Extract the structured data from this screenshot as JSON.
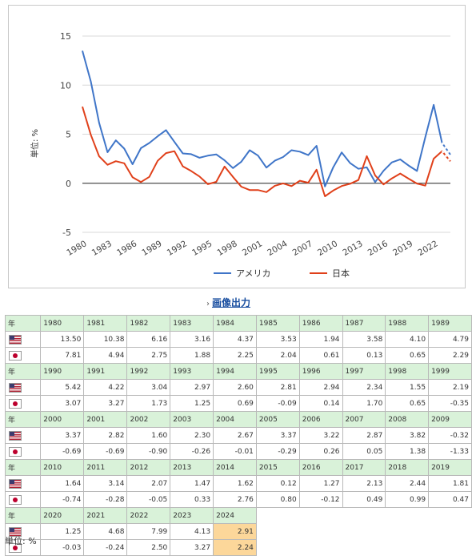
{
  "chart_data": {
    "type": "line",
    "ylabel": "単位: %",
    "ylim": [
      -5,
      15
    ],
    "yticks": [
      15,
      10,
      5,
      0,
      -5
    ],
    "xlim": [
      1980,
      2024
    ],
    "xtick_labels": [
      "1980",
      "1983",
      "1986",
      "1989",
      "1992",
      "1995",
      "1998",
      "2001",
      "2004",
      "2007",
      "2010",
      "2013",
      "2016",
      "2019",
      "2022"
    ],
    "grid": true,
    "legend_position": "bottom",
    "x": [
      1980,
      1981,
      1982,
      1983,
      1984,
      1985,
      1986,
      1987,
      1988,
      1989,
      1990,
      1991,
      1992,
      1993,
      1994,
      1995,
      1996,
      1997,
      1998,
      1999,
      2000,
      2001,
      2002,
      2003,
      2004,
      2005,
      2006,
      2007,
      2008,
      2009,
      2010,
      2011,
      2012,
      2013,
      2014,
      2015,
      2016,
      2017,
      2018,
      2019,
      2020,
      2021,
      2022,
      2023,
      2024
    ],
    "series": [
      {
        "name": "アメリカ",
        "color": "#3f75c8",
        "values": [
          13.5,
          10.38,
          6.16,
          3.16,
          4.37,
          3.53,
          1.94,
          3.58,
          4.1,
          4.79,
          5.42,
          4.22,
          3.04,
          2.97,
          2.6,
          2.81,
          2.94,
          2.34,
          1.55,
          2.19,
          3.37,
          2.82,
          1.6,
          2.3,
          2.67,
          3.37,
          3.22,
          2.87,
          3.82,
          -0.32,
          1.64,
          3.14,
          2.07,
          1.47,
          1.62,
          0.12,
          1.27,
          2.13,
          2.44,
          1.81,
          1.25,
          4.68,
          7.99,
          4.13,
          2.91
        ]
      },
      {
        "name": "日本",
        "color": "#e0401a",
        "values": [
          7.81,
          4.94,
          2.75,
          1.88,
          2.25,
          2.04,
          0.61,
          0.13,
          0.65,
          2.29,
          3.07,
          3.27,
          1.73,
          1.25,
          0.69,
          -0.09,
          0.14,
          1.7,
          0.65,
          -0.35,
          -0.69,
          -0.69,
          -0.9,
          -0.26,
          -0.01,
          -0.29,
          0.26,
          0.05,
          1.38,
          -1.33,
          -0.74,
          -0.28,
          -0.05,
          0.33,
          2.76,
          0.8,
          -0.12,
          0.49,
          0.99,
          0.47,
          -0.03,
          -0.24,
          2.5,
          3.27,
          2.24
        ]
      }
    ]
  },
  "export": {
    "arrow": "›",
    "label": "画像出力"
  },
  "table": {
    "corner_label": "年",
    "unit_note": "単位: %",
    "highlight_year": 2024
  }
}
